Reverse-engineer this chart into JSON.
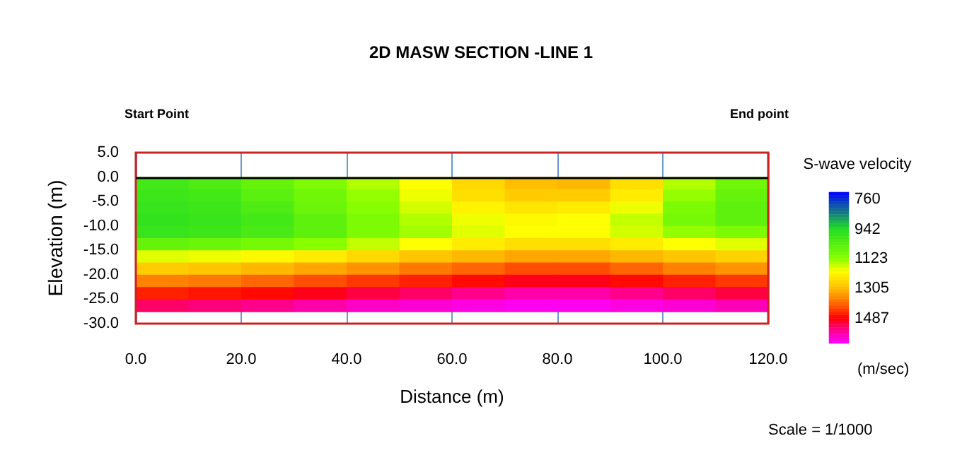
{
  "chart_data": {
    "type": "heatmap",
    "title": "2D MASW SECTION -LINE 1",
    "xlabel": "Distance (m)",
    "ylabel": "Elevation (m)",
    "clabel": "S-wave velocity",
    "annotations": [
      "Start Point",
      "End point",
      "(m/sec)",
      "Scale = 1/1000"
    ],
    "x": [
      5,
      15,
      25,
      35,
      45,
      55,
      65,
      75,
      85,
      95,
      105,
      115
    ],
    "y": [
      -1.25,
      -3.75,
      -6.25,
      -8.75,
      -11.25,
      -13.75,
      -16.25,
      -18.75,
      -21.25,
      -23.75,
      -26.25
    ],
    "cells": [
      [
        1000,
        1020,
        1060,
        1100,
        1150,
        1200,
        1260,
        1300,
        1310,
        1250,
        1150,
        1080
      ],
      [
        990,
        1000,
        1040,
        1080,
        1130,
        1190,
        1250,
        1280,
        1280,
        1230,
        1130,
        1060
      ],
      [
        980,
        990,
        1020,
        1070,
        1120,
        1170,
        1220,
        1240,
        1230,
        1190,
        1100,
        1050
      ],
      [
        970,
        980,
        1000,
        1050,
        1100,
        1150,
        1190,
        1210,
        1200,
        1160,
        1090,
        1050
      ],
      [
        980,
        990,
        1010,
        1050,
        1100,
        1140,
        1180,
        1200,
        1200,
        1170,
        1130,
        1100
      ],
      [
        1060,
        1070,
        1090,
        1120,
        1160,
        1200,
        1230,
        1250,
        1250,
        1230,
        1200,
        1180
      ],
      [
        1180,
        1190,
        1210,
        1230,
        1260,
        1290,
        1310,
        1330,
        1330,
        1310,
        1290,
        1270
      ],
      [
        1280,
        1290,
        1310,
        1330,
        1350,
        1380,
        1400,
        1420,
        1420,
        1400,
        1370,
        1350
      ],
      [
        1370,
        1380,
        1400,
        1420,
        1440,
        1460,
        1480,
        1500,
        1500,
        1480,
        1460,
        1440
      ],
      [
        1460,
        1470,
        1480,
        1500,
        1520,
        1540,
        1560,
        1580,
        1580,
        1560,
        1540,
        1520
      ],
      [
        1540,
        1550,
        1560,
        1580,
        1600,
        1610,
        1620,
        1630,
        1630,
        1620,
        1610,
        1590
      ]
    ],
    "xlim": [
      0,
      120
    ],
    "xticks": [
      {
        "value": 0,
        "label": "0.0"
      },
      {
        "value": 20,
        "label": "20.0"
      },
      {
        "value": 40,
        "label": "40.0"
      },
      {
        "value": 60,
        "label": "60.0"
      },
      {
        "value": 80,
        "label": "80.0"
      },
      {
        "value": 100,
        "label": "100.0"
      },
      {
        "value": 120,
        "label": "120.0"
      }
    ],
    "ylim": [
      -30,
      5
    ],
    "yticks": [
      {
        "value": 5,
        "label": "5.0"
      },
      {
        "value": 0,
        "label": "0.0"
      },
      {
        "value": -5,
        "label": "-5.0"
      },
      {
        "value": -10,
        "label": "-10.0"
      },
      {
        "value": -15,
        "label": "-15.0"
      },
      {
        "value": -20,
        "label": "-20.0"
      },
      {
        "value": -25,
        "label": "-25.0"
      },
      {
        "value": -30,
        "label": "-30.0"
      }
    ],
    "clim": [
      715,
      1640
    ],
    "cticks": [
      760,
      942,
      1123,
      1305,
      1487
    ],
    "grid": "x",
    "ref_lines": [
      {
        "axis": "y",
        "value": 0,
        "color": "#000000"
      }
    ]
  }
}
